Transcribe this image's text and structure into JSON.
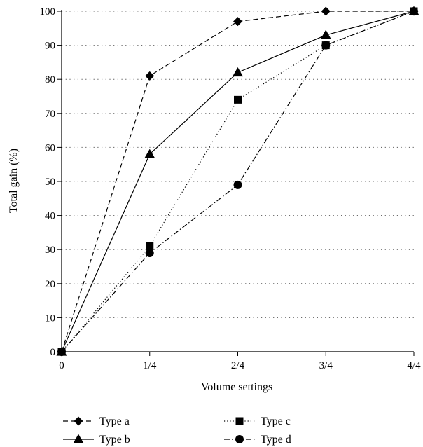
{
  "chart_data": {
    "type": "line",
    "title": "",
    "xlabel": "Volume settings",
    "ylabel": "Total gain (%)",
    "categories": [
      "0",
      "1/4",
      "2/4",
      "3/4",
      "4/4"
    ],
    "ylim": [
      0,
      100
    ],
    "yticks": [
      "0",
      "10",
      "20",
      "30",
      "40",
      "50",
      "60",
      "70",
      "80",
      "90",
      "100"
    ],
    "grid": "horizontal-dotted",
    "legend_position": "bottom",
    "series": [
      {
        "name": "Type a",
        "values": [
          0,
          81,
          97,
          100,
          100
        ],
        "dash": "dashed",
        "marker": "diamond"
      },
      {
        "name": "Type b",
        "values": [
          0,
          58,
          82,
          93,
          100
        ],
        "dash": "solid",
        "marker": "triangle"
      },
      {
        "name": "Type c",
        "values": [
          0,
          31,
          74,
          90,
          100
        ],
        "dash": "dotted",
        "marker": "square"
      },
      {
        "name": "Type d",
        "values": [
          0,
          29,
          49,
          90,
          100
        ],
        "dash": "dashdot",
        "marker": "circle"
      }
    ]
  }
}
